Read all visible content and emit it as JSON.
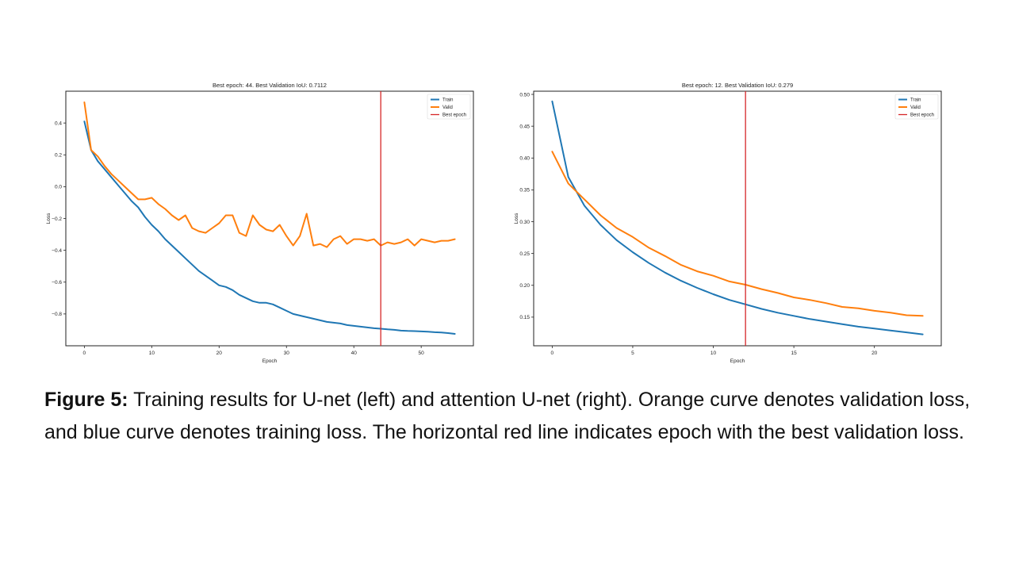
{
  "caption": {
    "label": "Figure 5:",
    "text": " Training results for U-net (left) and attention U-net (right). Orange curve denotes validation loss, and blue curve denotes training loss. The horizontal red line indicates epoch with the best validation loss."
  },
  "colors": {
    "train": "#1f77b4",
    "valid": "#ff7f0e",
    "best": "#d62728"
  },
  "chart_data": [
    {
      "type": "line",
      "title": "Best epoch: 44. Best Validation IoU: 0.7112",
      "xlabel": "Epoch",
      "ylabel": "Loss",
      "xlim": [
        -2.75,
        57.75
      ],
      "ylim": [
        -1.0,
        0.6
      ],
      "xticks": [
        0,
        10,
        20,
        30,
        40,
        50
      ],
      "yticks": [
        -0.8,
        -0.6,
        -0.4,
        -0.2,
        0.0,
        0.2,
        0.4
      ],
      "ytick_labels": [
        "−0.8",
        "−0.6",
        "−0.4",
        "−0.2",
        "0.0",
        "0.2",
        "0.4"
      ],
      "best_epoch": 44,
      "grid": false,
      "legend_position": "top-right",
      "legend": [
        "Train",
        "Valid",
        "Best epoch"
      ],
      "series": [
        {
          "name": "Train",
          "color": "#1f77b4",
          "x": [
            0,
            1,
            2,
            3,
            4,
            5,
            6,
            7,
            8,
            9,
            10,
            11,
            12,
            13,
            14,
            15,
            16,
            17,
            18,
            19,
            20,
            21,
            22,
            23,
            24,
            25,
            26,
            27,
            28,
            29,
            30,
            31,
            32,
            33,
            34,
            35,
            36,
            37,
            38,
            39,
            40,
            41,
            42,
            43,
            44,
            45,
            46,
            47,
            48,
            49,
            50,
            51,
            52,
            53,
            54,
            55
          ],
          "values": [
            0.41,
            0.23,
            0.16,
            0.11,
            0.06,
            0.01,
            -0.04,
            -0.09,
            -0.13,
            -0.19,
            -0.24,
            -0.28,
            -0.33,
            -0.37,
            -0.41,
            -0.45,
            -0.49,
            -0.53,
            -0.56,
            -0.59,
            -0.62,
            -0.63,
            -0.65,
            -0.68,
            -0.7,
            -0.72,
            -0.73,
            -0.73,
            -0.74,
            -0.76,
            -0.78,
            -0.8,
            -0.81,
            -0.82,
            -0.83,
            -0.84,
            -0.85,
            -0.855,
            -0.86,
            -0.87,
            -0.875,
            -0.88,
            -0.885,
            -0.89,
            -0.893,
            -0.897,
            -0.9,
            -0.905,
            -0.907,
            -0.908,
            -0.91,
            -0.912,
            -0.915,
            -0.917,
            -0.92,
            -0.925
          ]
        },
        {
          "name": "Valid",
          "color": "#ff7f0e",
          "x": [
            0,
            1,
            2,
            3,
            4,
            5,
            6,
            7,
            8,
            9,
            10,
            11,
            12,
            13,
            14,
            15,
            16,
            17,
            18,
            19,
            20,
            21,
            22,
            23,
            24,
            25,
            26,
            27,
            28,
            29,
            30,
            31,
            32,
            33,
            34,
            35,
            36,
            37,
            38,
            39,
            40,
            41,
            42,
            43,
            44,
            45,
            46,
            47,
            48,
            49,
            50,
            51,
            52,
            53,
            54,
            55
          ],
          "values": [
            0.53,
            0.23,
            0.19,
            0.13,
            0.08,
            0.04,
            0.0,
            -0.04,
            -0.08,
            -0.08,
            -0.07,
            -0.11,
            -0.14,
            -0.18,
            -0.21,
            -0.18,
            -0.26,
            -0.28,
            -0.29,
            -0.26,
            -0.23,
            -0.18,
            -0.18,
            -0.29,
            -0.31,
            -0.18,
            -0.24,
            -0.27,
            -0.28,
            -0.24,
            -0.31,
            -0.37,
            -0.31,
            -0.17,
            -0.37,
            -0.36,
            -0.38,
            -0.33,
            -0.31,
            -0.36,
            -0.33,
            -0.33,
            -0.34,
            -0.33,
            -0.37,
            -0.35,
            -0.36,
            -0.35,
            -0.33,
            -0.37,
            -0.33,
            -0.34,
            -0.35,
            -0.34,
            -0.34,
            -0.33
          ]
        }
      ]
    },
    {
      "type": "line",
      "title": "Best epoch: 12. Best Validation IoU: 0.279",
      "xlabel": "Epoch",
      "ylabel": "Loss",
      "xlim": [
        -1.15,
        24.15
      ],
      "ylim": [
        0.105,
        0.505
      ],
      "xticks": [
        0,
        5,
        10,
        15,
        20
      ],
      "yticks": [
        0.15,
        0.2,
        0.25,
        0.3,
        0.35,
        0.4,
        0.45,
        0.5
      ],
      "ytick_labels": [
        "0.15",
        "0.20",
        "0.25",
        "0.30",
        "0.35",
        "0.40",
        "0.45",
        "0.50"
      ],
      "best_epoch": 12,
      "grid": false,
      "legend_position": "top-right",
      "legend": [
        "Train",
        "Valid",
        "Best epoch"
      ],
      "series": [
        {
          "name": "Train",
          "color": "#1f77b4",
          "x": [
            0,
            1,
            2,
            3,
            4,
            5,
            6,
            7,
            8,
            9,
            10,
            11,
            12,
            13,
            14,
            15,
            16,
            17,
            18,
            19,
            20,
            21,
            22,
            23
          ],
          "values": [
            0.489,
            0.37,
            0.325,
            0.295,
            0.271,
            0.252,
            0.235,
            0.22,
            0.207,
            0.196,
            0.186,
            0.177,
            0.17,
            0.163,
            0.157,
            0.152,
            0.147,
            0.143,
            0.139,
            0.135,
            0.132,
            0.129,
            0.126,
            0.123
          ]
        },
        {
          "name": "Valid",
          "color": "#ff7f0e",
          "x": [
            0,
            1,
            2,
            3,
            4,
            5,
            6,
            7,
            8,
            9,
            10,
            11,
            12,
            13,
            14,
            15,
            16,
            17,
            18,
            19,
            20,
            21,
            22,
            23
          ],
          "values": [
            0.41,
            0.36,
            0.335,
            0.31,
            0.29,
            0.276,
            0.259,
            0.246,
            0.232,
            0.222,
            0.215,
            0.206,
            0.201,
            0.194,
            0.188,
            0.181,
            0.177,
            0.172,
            0.166,
            0.164,
            0.16,
            0.157,
            0.153,
            0.152
          ]
        }
      ]
    }
  ]
}
